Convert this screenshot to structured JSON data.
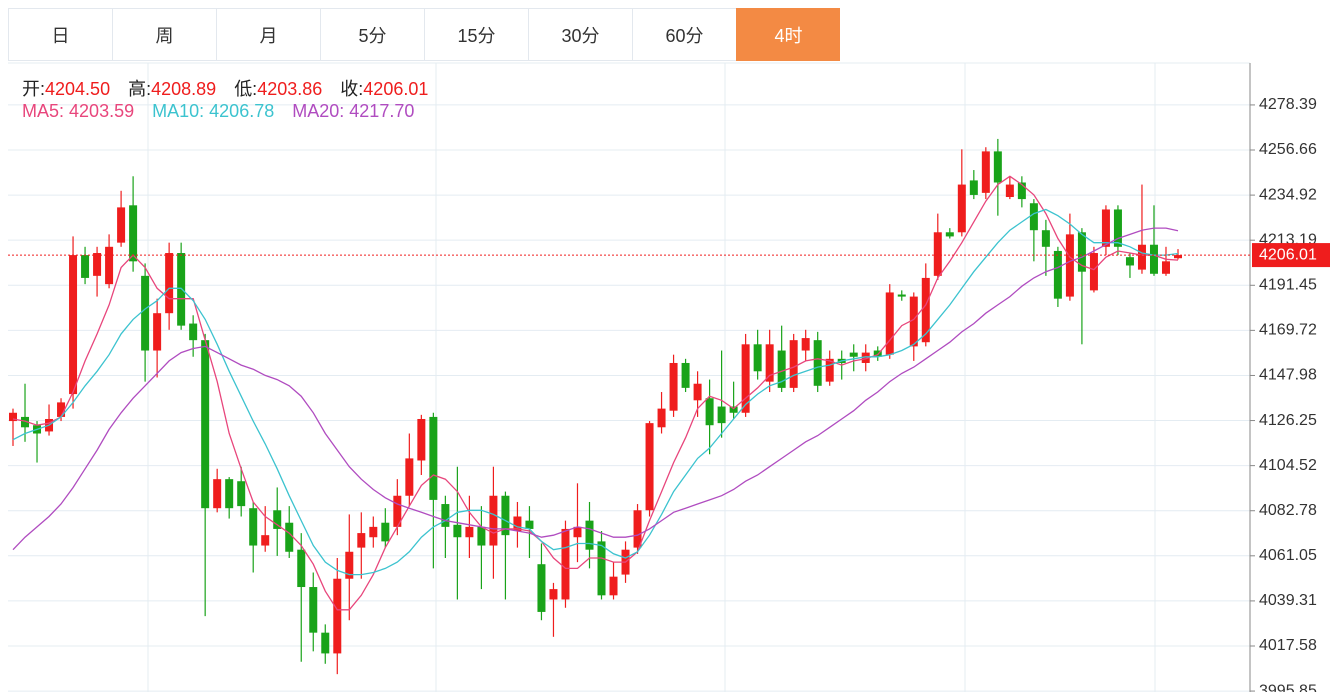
{
  "tabs": {
    "items": [
      "日",
      "周",
      "月",
      "5分",
      "15分",
      "30分",
      "60分",
      "4时"
    ],
    "active": 7
  },
  "info": [
    {
      "label": "开:",
      "value": "4204.50"
    },
    {
      "label": "高:",
      "value": "4208.89"
    },
    {
      "label": "低:",
      "value": "4203.86"
    },
    {
      "label": "收:",
      "value": "4206.01"
    }
  ],
  "ma_info": [
    {
      "label": "MA5:",
      "value": "4203.59",
      "color": "#e8467c"
    },
    {
      "label": "MA10:",
      "value": "4206.78",
      "color": "#3cc3cf"
    },
    {
      "label": "MA20:",
      "value": "4217.70",
      "color": "#b04cc0"
    }
  ],
  "chart_data": {
    "type": "candlestick",
    "up_color": "#ef1d1d",
    "down_color": "#19a319",
    "grid": true,
    "ylim": [
      3995.4,
      4298.6
    ],
    "yticks": [
      4278.39,
      4256.66,
      4234.92,
      4213.19,
      4191.45,
      4169.72,
      4147.98,
      4126.25,
      4104.52,
      4082.78,
      4061.05,
      4039.31,
      4017.58,
      3995.85
    ],
    "candles": {
      "open": [
        4126,
        4128,
        4124,
        4121,
        4128,
        4139,
        4206,
        4196,
        4192,
        4212,
        4230,
        4196,
        4160,
        4178,
        4207,
        4173,
        4165,
        4084,
        4098,
        4097,
        4084,
        4066,
        4083,
        4077,
        4064,
        4046,
        4024,
        4014,
        4050,
        4065,
        4070,
        4077,
        4075,
        4090,
        4107,
        4128,
        4086,
        4076,
        4070,
        4075,
        4066,
        4090,
        4073,
        4078,
        4057,
        4040,
        4040,
        4070,
        4078,
        4068,
        4042,
        4052,
        4065,
        4083,
        4123,
        4131,
        4154,
        4136,
        4137,
        4133,
        4133,
        4130,
        4163,
        4145,
        4160,
        4142,
        4160,
        4165,
        4145,
        4156,
        4159,
        4154,
        4160,
        4158,
        4187,
        4162,
        4164,
        4196,
        4217,
        4217,
        4242,
        4236,
        4256,
        4234,
        4241,
        4231,
        4218,
        4208,
        4186,
        4217,
        4189,
        4210,
        4228,
        4205,
        4199,
        4211,
        4197,
        4204.5
      ],
      "high": [
        4132,
        4144,
        4126,
        4134,
        4137,
        4215,
        4210,
        4210,
        4216,
        4237,
        4244,
        4202,
        4185,
        4212,
        4212,
        4177,
        4168,
        4103,
        4099,
        4104,
        4087,
        4085,
        4094,
        4085,
        4072,
        4053,
        4028,
        4060,
        4081,
        4082,
        4080,
        4084,
        4098,
        4120,
        4129,
        4130,
        4090,
        4104,
        4090,
        4085,
        4104,
        4092,
        4087,
        4085,
        4067,
        4048,
        4078,
        4096,
        4087,
        4073,
        4058,
        4068,
        4086,
        4126,
        4140,
        4158,
        4156,
        4150,
        4146,
        4160,
        4145,
        4168,
        4170,
        4170,
        4172,
        4168,
        4170,
        4169,
        4160,
        4160,
        4163,
        4163,
        4162,
        4192,
        4189,
        4188,
        4202,
        4226,
        4219,
        4257,
        4247,
        4258,
        4262,
        4244,
        4244,
        4233,
        4223,
        4210,
        4226,
        4219,
        4210,
        4230,
        4230,
        4207,
        4240,
        4230,
        4210,
        4208.89
      ],
      "low": [
        4114,
        4116,
        4106,
        4119,
        4126,
        4132,
        4192,
        4186,
        4190,
        4210,
        4198,
        4145,
        4147,
        4170,
        4170,
        4157,
        4032,
        4082,
        4079,
        4080,
        4053,
        4063,
        4061,
        4060,
        4010,
        4015,
        4009,
        4004,
        4030,
        4050,
        4065,
        4065,
        4071,
        4085,
        4100,
        4055,
        4060,
        4040,
        4060,
        4045,
        4050,
        4040,
        4065,
        4060,
        4030,
        4022,
        4036,
        4058,
        4055,
        4040,
        4040,
        4048,
        4062,
        4080,
        4120,
        4128,
        4140,
        4128,
        4110,
        4118,
        4127,
        4128,
        4146,
        4140,
        4140,
        4140,
        4155,
        4140,
        4143,
        4146,
        4150,
        4150,
        4155,
        4156,
        4184,
        4155,
        4162,
        4194,
        4214,
        4215,
        4233,
        4233,
        4225,
        4233,
        4229,
        4203,
        4196,
        4181,
        4184,
        4163,
        4188,
        4206,
        4206,
        4195,
        4197,
        4196,
        4196,
        4203.86
      ],
      "close": [
        4130,
        4123,
        4120,
        4127,
        4135,
        4206,
        4195,
        4207,
        4210,
        4229,
        4203,
        4160,
        4178,
        4207,
        4172,
        4165,
        4084,
        4098,
        4084,
        4085,
        4066,
        4071,
        4074,
        4063,
        4046,
        4024,
        4014,
        4050,
        4063,
        4072,
        4075,
        4068,
        4090,
        4108,
        4127,
        4088,
        4075,
        4070,
        4075,
        4066,
        4090,
        4071,
        4080,
        4074,
        4034,
        4045,
        4074,
        4075,
        4064,
        4042,
        4051,
        4064,
        4083,
        4125,
        4132,
        4154,
        4142,
        4144,
        4124,
        4125,
        4130,
        4163,
        4150,
        4163,
        4142,
        4165,
        4166,
        4143,
        4156,
        4154,
        4157,
        4159,
        4157,
        4188,
        4186,
        4186,
        4195,
        4217,
        4215,
        4240,
        4235,
        4256,
        4241,
        4240,
        4233,
        4218,
        4210,
        4185,
        4216,
        4198,
        4207,
        4228,
        4210,
        4201,
        4211,
        4197,
        4203,
        4206.01
      ]
    },
    "ma_series": [
      {
        "color": "#e8467c",
        "values": [
          4127,
          4126,
          4124,
          4125,
          4128,
          4140,
          4155,
          4168,
          4182,
          4200,
          4206,
          4200,
          4190,
          4185,
          4185,
          4185,
          4165,
          4145,
          4120,
          4103,
          4087,
          4080,
          4076,
          4072,
          4066,
          4057,
          4044,
          4035,
          4035,
          4042,
          4052,
          4065,
          4075,
          4085,
          4095,
          4100,
          4098,
          4092,
          4082,
          4075,
          4072,
          4074,
          4074,
          4073,
          4068,
          4060,
          4055,
          4055,
          4060,
          4060,
          4058,
          4058,
          4063,
          4078,
          4092,
          4106,
          4118,
          4132,
          4138,
          4136,
          4132,
          4137,
          4142,
          4148,
          4150,
          4152,
          4155,
          4156,
          4155,
          4153,
          4155,
          4156,
          4158,
          4165,
          4172,
          4175,
          4182,
          4195,
          4203,
          4212,
          4222,
          4232,
          4240,
          4244,
          4240,
          4235,
          4226,
          4214,
          4205,
          4201,
          4199,
          4205,
          4208,
          4207,
          4206,
          4206,
          4204,
          4203.59
        ]
      },
      {
        "color": "#3cc3cf",
        "values": [
          4117,
          4120,
          4122,
          4124,
          4128,
          4135,
          4143,
          4150,
          4158,
          4168,
          4175,
          4180,
          4184,
          4190,
          4190,
          4184,
          4175,
          4163,
          4150,
          4138,
          4126,
          4115,
          4103,
          4090,
          4078,
          4066,
          4058,
          4054,
          4052,
          4052,
          4053,
          4055,
          4058,
          4063,
          4070,
          4075,
          4078,
          4082,
          4083,
          4083,
          4081,
          4078,
          4075,
          4074,
          4068,
          4064,
          4065,
          4067,
          4067,
          4066,
          4062,
          4060,
          4063,
          4071,
          4081,
          4092,
          4100,
          4108,
          4113,
          4120,
          4127,
          4134,
          4139,
          4143,
          4145,
          4148,
          4150,
          4152,
          4153,
          4155,
          4156,
          4157,
          4157,
          4158,
          4160,
          4163,
          4168,
          4175,
          4182,
          4190,
          4198,
          4205,
          4212,
          4218,
          4222,
          4226,
          4228,
          4225,
          4221,
          4216,
          4212,
          4212,
          4212,
          4210,
          4207,
          4206,
          4206,
          4206.78
        ]
      },
      {
        "color": "#b04cc0",
        "values": [
          4064,
          4070,
          4075,
          4080,
          4086,
          4094,
          4103,
          4112,
          4122,
          4130,
          4137,
          4143,
          4149,
          4155,
          4159,
          4161,
          4162,
          4159,
          4156,
          4153,
          4151,
          4148,
          4146,
          4143,
          4138,
          4130,
          4120,
          4112,
          4104,
          4098,
          4093,
          4089,
          4086,
          4084,
          4082,
          4080,
          4078,
          4077,
          4076,
          4075,
          4074,
          4074,
          4073,
          4072,
          4070,
          4071,
          4073,
          4075,
          4074,
          4072,
          4070,
          4070,
          4071,
          4074,
          4078,
          4082,
          4084,
          4086,
          4088,
          4090,
          4093,
          4097,
          4100,
          4104,
          4108,
          4112,
          4116,
          4119,
          4123,
          4127,
          4131,
          4136,
          4140,
          4145,
          4149,
          4152,
          4156,
          4160,
          4164,
          4169,
          4173,
          4178,
          4182,
          4186,
          4191,
          4195,
          4198,
          4200,
          4203,
          4205,
          4208,
          4211,
          4214,
          4216,
          4218,
          4219,
          4219,
          4217.7
        ]
      }
    ]
  }
}
